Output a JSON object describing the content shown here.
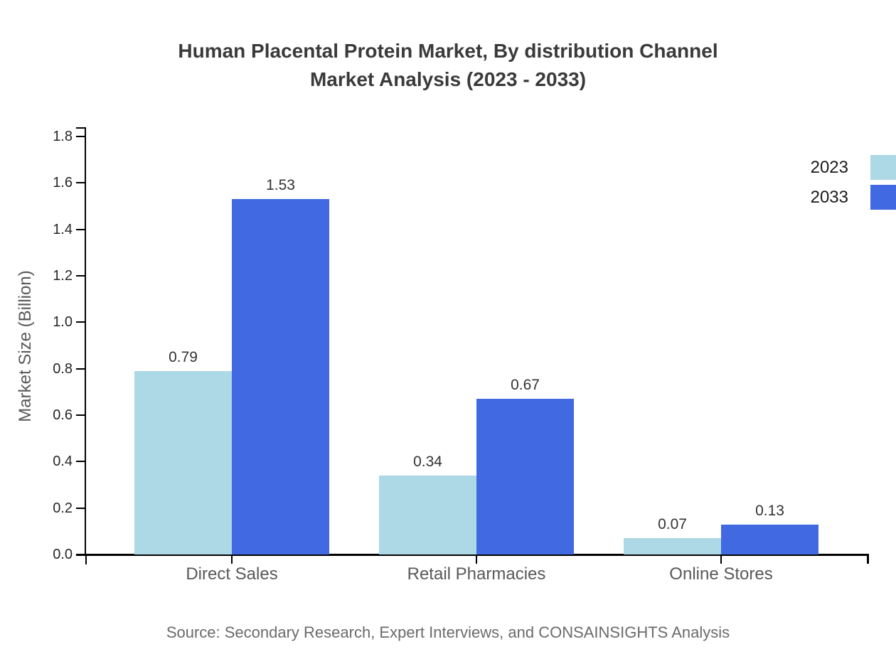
{
  "chart_data": {
    "type": "bar",
    "title": "Human Placental Protein Market, By distribution Channel Market Analysis (2023 - 2033)",
    "title_lines": [
      "Human Placental Protein Market, By distribution Channel",
      "Market Analysis (2023 - 2033)"
    ],
    "categories": [
      "Direct Sales",
      "Retail Pharmacies",
      "Online Stores"
    ],
    "series": [
      {
        "name": "2023",
        "values": [
          0.79,
          0.34,
          0.07
        ],
        "color": "#ADD8E6"
      },
      {
        "name": "2033",
        "values": [
          1.53,
          0.67,
          0.13
        ],
        "color": "#4169E1"
      }
    ],
    "xlabel": "",
    "ylabel": "Market Size (Billion)",
    "ylim": [
      0,
      1.8
    ],
    "ytick_step": 0.2,
    "grid": false,
    "value_labels": true,
    "legend_position": "right-top",
    "source": "Source: Secondary Research, Expert Interviews, and CONSAINSIGHTS Analysis"
  },
  "colors": {
    "series_2023": "#ADD8E6",
    "series_2033": "#4169E1",
    "axis": "#000000",
    "title_text": "#3a3a3a",
    "axis_label_text": "#595959",
    "tick_text": "#262626",
    "value_text": "#333333",
    "legend_text": "#1a1a1a",
    "source_text": "#6b6b6b",
    "background": "#ffffff"
  }
}
